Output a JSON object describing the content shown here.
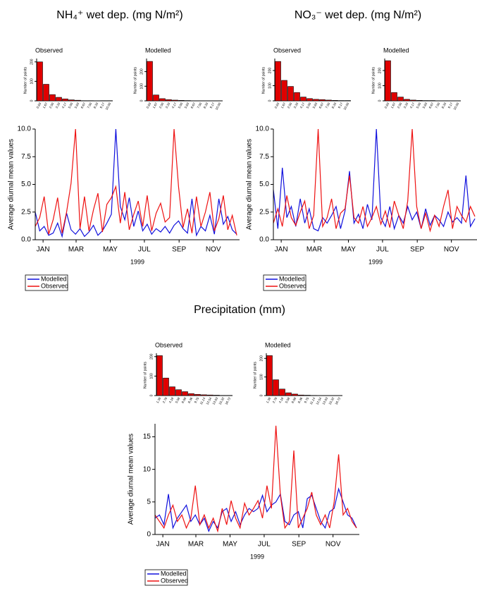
{
  "chart_data": [
    {
      "type": "bar",
      "title": "Observed",
      "ylabel": "Number of points",
      "color": "#e00000",
      "categories": [
        "0.83",
        "1.67",
        "2.50",
        "3.33",
        "4.17",
        "5.00",
        "5.83",
        "6.67",
        "7.50",
        "8.33",
        "9.17",
        "10.00"
      ],
      "values": [
        200,
        85,
        32,
        18,
        10,
        5,
        3,
        1,
        1,
        0,
        1,
        1
      ],
      "ylim": [
        0,
        210
      ],
      "yticks": [
        0,
        100,
        200
      ]
    },
    {
      "type": "bar",
      "title": "Modelled",
      "ylabel": "Number of points",
      "color": "#e00000",
      "categories": [
        "0.83",
        "1.67",
        "2.50",
        "3.33",
        "4.17",
        "5.00",
        "5.83",
        "6.67",
        "7.50",
        "8.33",
        "9.17",
        "10.00"
      ],
      "values": [
        270,
        40,
        15,
        8,
        5,
        3,
        2,
        1,
        1,
        0,
        0,
        0
      ],
      "ylim": [
        0,
        280
      ],
      "yticks": [
        0,
        100,
        200
      ]
    },
    {
      "type": "line",
      "panel_title": "NH₄⁺ wet dep. (mg N/m²)",
      "ylabel": "Average diurnal mean values",
      "xlabel": "1999",
      "legend": "below left",
      "x": [
        1,
        9,
        17,
        25,
        33,
        41,
        49,
        57,
        65,
        73,
        81,
        89,
        97,
        105,
        113,
        121,
        129,
        137,
        145,
        153,
        161,
        169,
        177,
        185,
        193,
        201,
        209,
        217,
        225,
        233,
        241,
        249,
        257,
        265,
        273,
        281,
        289,
        297,
        305,
        313,
        321,
        329,
        337,
        345,
        353,
        361
      ],
      "xlim": [
        1,
        366
      ],
      "xticks": [
        {
          "value": 15,
          "label": "JAN"
        },
        {
          "value": 74,
          "label": "MAR"
        },
        {
          "value": 135,
          "label": "MAY"
        },
        {
          "value": 196,
          "label": "JUL"
        },
        {
          "value": 258,
          "label": "SEP"
        },
        {
          "value": 319,
          "label": "NOV"
        }
      ],
      "ylim": [
        0,
        10
      ],
      "yticks": [
        {
          "value": 0,
          "label": "0.0"
        },
        {
          "value": 2.5,
          "label": "2.5"
        },
        {
          "value": 5,
          "label": "5.0"
        },
        {
          "value": 7.5,
          "label": "7.5"
        },
        {
          "value": 10,
          "label": "10.0"
        }
      ],
      "series": [
        {
          "name": "Modelled",
          "color": "#1010dd",
          "values": [
            2.5,
            0.8,
            1.2,
            0.4,
            0.6,
            1.5,
            0.3,
            2.4,
            0.9,
            0.5,
            1.0,
            0.3,
            0.7,
            1.3,
            0.4,
            0.8,
            1.5,
            2.3,
            10.0,
            3.0,
            1.8,
            3.8,
            1.2,
            2.6,
            0.8,
            1.4,
            0.5,
            1.0,
            0.7,
            1.2,
            0.6,
            1.3,
            1.7,
            1.0,
            0.6,
            3.7,
            0.4,
            1.2,
            0.8,
            2.2,
            0.5,
            3.7,
            1.4,
            2.1,
            0.9,
            0.5
          ]
        },
        {
          "name": "Observed",
          "color": "#ee1111",
          "values": [
            1.2,
            2.0,
            3.9,
            0.5,
            1.8,
            3.8,
            0.6,
            2.5,
            5.1,
            10.0,
            1.0,
            3.9,
            0.8,
            2.7,
            4.2,
            0.7,
            3.2,
            3.8,
            4.8,
            1.5,
            4.3,
            0.9,
            2.3,
            3.5,
            1.2,
            4.0,
            0.8,
            2.4,
            3.3,
            1.6,
            2.0,
            10.0,
            4.8,
            1.1,
            2.8,
            0.6,
            3.9,
            1.2,
            2.5,
            4.3,
            0.8,
            1.9,
            4.0,
            0.9,
            2.2,
            0.4
          ]
        }
      ]
    },
    {
      "type": "bar",
      "title": "Observed",
      "ylabel": "Number of points",
      "color": "#e00000",
      "categories": [
        "0.83",
        "1.67",
        "2.50",
        "3.33",
        "4.17",
        "5.00",
        "5.83",
        "6.67",
        "7.50",
        "8.33",
        "9.17",
        "10.00"
      ],
      "values": [
        260,
        135,
        95,
        55,
        25,
        15,
        10,
        8,
        5,
        3,
        2,
        2
      ],
      "ylim": [
        0,
        270
      ],
      "yticks": [
        0,
        100,
        200
      ]
    },
    {
      "type": "bar",
      "title": "Modelled",
      "ylabel": "Number of points",
      "color": "#e00000",
      "categories": [
        "0.83",
        "1.67",
        "2.50",
        "3.33",
        "4.17",
        "5.00",
        "5.83",
        "6.67",
        "7.50",
        "8.33",
        "9.17",
        "10.00"
      ],
      "values": [
        265,
        55,
        25,
        10,
        5,
        3,
        2,
        2,
        1,
        1,
        0,
        0
      ],
      "ylim": [
        0,
        270
      ],
      "yticks": [
        0,
        100,
        200
      ]
    },
    {
      "type": "line",
      "panel_title": "NO₃⁻ wet dep. (mg N/m²)",
      "ylabel": "Average diurnal mean values",
      "xlabel": "1999",
      "legend": "below left",
      "x": [
        1,
        9,
        17,
        25,
        33,
        41,
        49,
        57,
        65,
        73,
        81,
        89,
        97,
        105,
        113,
        121,
        129,
        137,
        145,
        153,
        161,
        169,
        177,
        185,
        193,
        201,
        209,
        217,
        225,
        233,
        241,
        249,
        257,
        265,
        273,
        281,
        289,
        297,
        305,
        313,
        321,
        329,
        337,
        345,
        353,
        361
      ],
      "xlim": [
        1,
        366
      ],
      "xticks": [
        {
          "value": 15,
          "label": "JAN"
        },
        {
          "value": 74,
          "label": "MAR"
        },
        {
          "value": 135,
          "label": "MAY"
        },
        {
          "value": 196,
          "label": "JUL"
        },
        {
          "value": 258,
          "label": "SEP"
        },
        {
          "value": 319,
          "label": "NOV"
        }
      ],
      "ylim": [
        0,
        10
      ],
      "yticks": [
        {
          "value": 0,
          "label": "0.0"
        },
        {
          "value": 2.5,
          "label": "2.5"
        },
        {
          "value": 5,
          "label": "5.0"
        },
        {
          "value": 7.5,
          "label": "7.5"
        },
        {
          "value": 10,
          "label": "10.0"
        }
      ],
      "series": [
        {
          "name": "Modelled",
          "color": "#1010dd",
          "values": [
            4.5,
            1.0,
            6.5,
            2.0,
            3.0,
            1.2,
            3.7,
            1.5,
            2.8,
            1.0,
            0.8,
            2.0,
            1.5,
            2.2,
            3.0,
            1.0,
            2.6,
            6.2,
            1.5,
            2.3,
            1.0,
            3.2,
            1.8,
            10.0,
            2.0,
            1.2,
            3.0,
            1.0,
            2.2,
            1.5,
            3.0,
            1.8,
            2.5,
            1.0,
            2.8,
            1.3,
            2.2,
            1.8,
            1.2,
            2.5,
            1.6,
            2.0,
            1.5,
            5.8,
            1.2,
            1.9
          ]
        },
        {
          "name": "Observed",
          "color": "#ee1111",
          "values": [
            1.5,
            2.8,
            1.2,
            4.0,
            2.0,
            1.3,
            2.5,
            3.5,
            1.0,
            2.2,
            10.0,
            1.2,
            2.0,
            3.7,
            1.0,
            2.4,
            2.8,
            5.8,
            2.0,
            1.5,
            3.0,
            1.2,
            2.0,
            3.0,
            1.4,
            2.6,
            1.1,
            3.5,
            2.2,
            1.0,
            3.5,
            10.0,
            3.0,
            1.0,
            2.4,
            0.8,
            2.2,
            1.2,
            3.0,
            4.5,
            1.0,
            3.0,
            2.2,
            1.6,
            3.0,
            2.1
          ]
        }
      ]
    },
    {
      "type": "bar",
      "title": "Observed",
      "ylabel": "Number of points",
      "color": "#e00000",
      "categories": [
        "1.39",
        "2.79",
        "4.18",
        "5.58",
        "6.98",
        "8.36",
        "9.75",
        "11.14",
        "12.54",
        "13.93",
        "15.32",
        "16.72"
      ],
      "values": [
        205,
        90,
        45,
        30,
        20,
        10,
        6,
        4,
        3,
        2,
        1,
        1
      ],
      "ylim": [
        0,
        210
      ],
      "yticks": [
        0,
        100,
        200
      ]
    },
    {
      "type": "bar",
      "title": "Modelled",
      "ylabel": "Number of points",
      "color": "#e00000",
      "categories": [
        "1.39",
        "2.79",
        "4.18",
        "5.58",
        "6.98",
        "8.36",
        "9.75",
        "11.14",
        "12.54",
        "13.93",
        "15.32",
        "16.72"
      ],
      "values": [
        215,
        85,
        35,
        15,
        8,
        3,
        2,
        1,
        0,
        0,
        0,
        0
      ],
      "ylim": [
        0,
        220
      ],
      "yticks": [
        0,
        100,
        200
      ]
    },
    {
      "type": "line",
      "panel_title": "Precipitation (mm)",
      "ylabel": "Average diurnal mean values",
      "xlabel": "1999",
      "legend": "below left",
      "x": [
        1,
        9,
        17,
        25,
        33,
        41,
        49,
        57,
        65,
        73,
        81,
        89,
        97,
        105,
        113,
        121,
        129,
        137,
        145,
        153,
        161,
        169,
        177,
        185,
        193,
        201,
        209,
        217,
        225,
        233,
        241,
        249,
        257,
        265,
        273,
        281,
        289,
        297,
        305,
        313,
        321,
        329,
        337,
        345,
        353,
        361
      ],
      "xlim": [
        1,
        366
      ],
      "xticks": [
        {
          "value": 15,
          "label": "JAN"
        },
        {
          "value": 74,
          "label": "MAR"
        },
        {
          "value": 135,
          "label": "MAY"
        },
        {
          "value": 196,
          "label": "JUL"
        },
        {
          "value": 258,
          "label": "SEP"
        },
        {
          "value": 319,
          "label": "NOV"
        }
      ],
      "ylim": [
        0,
        17
      ],
      "yticks": [
        0,
        5,
        10,
        15
      ],
      "series": [
        {
          "name": "Modelled",
          "color": "#1010dd",
          "values": [
            2.5,
            3.0,
            1.5,
            6.2,
            1.0,
            2.5,
            3.5,
            4.5,
            2.0,
            3.0,
            1.5,
            2.5,
            0.5,
            2.0,
            1.0,
            3.5,
            4.0,
            2.0,
            3.5,
            1.5,
            3.0,
            4.0,
            3.5,
            4.0,
            6.0,
            3.5,
            4.5,
            5.0,
            6.2,
            2.0,
            1.5,
            3.0,
            3.5,
            1.0,
            5.5,
            6.0,
            4.0,
            2.0,
            1.0,
            3.5,
            4.0,
            7.0,
            5.0,
            3.0,
            2.5,
            1.0
          ]
        },
        {
          "name": "Observed",
          "color": "#ee1111",
          "values": [
            3.0,
            2.0,
            1.0,
            3.0,
            4.5,
            2.0,
            3.0,
            1.0,
            2.5,
            7.5,
            1.5,
            3.0,
            1.0,
            2.5,
            0.5,
            4.0,
            1.5,
            5.2,
            2.5,
            1.0,
            4.8,
            3.0,
            4.0,
            5.2,
            2.5,
            7.5,
            4.0,
            16.7,
            6.0,
            1.0,
            2.0,
            12.9,
            1.0,
            2.5,
            4.0,
            6.5,
            3.0,
            1.5,
            3.0,
            1.0,
            5.0,
            12.3,
            3.0,
            4.0,
            2.0,
            1.0
          ]
        }
      ]
    }
  ]
}
